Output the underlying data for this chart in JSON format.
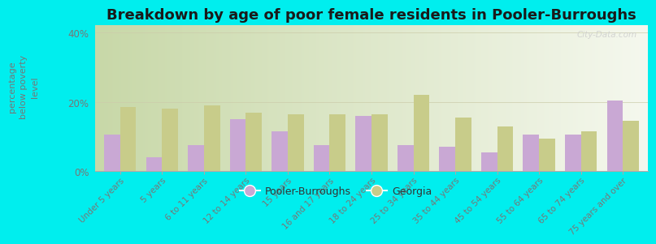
{
  "title": "Breakdown by age of poor female residents in Pooler-Burroughs",
  "categories": [
    "Under 5 years",
    "5 years",
    "6 to 11 years",
    "12 to 14 years",
    "15 years",
    "16 and 17 years",
    "18 to 24 years",
    "25 to 34 years",
    "35 to 44 years",
    "45 to 54 years",
    "55 to 64 years",
    "65 to 74 years",
    "75 years and over"
  ],
  "pooler_values": [
    10.5,
    4.0,
    7.5,
    15.0,
    11.5,
    7.5,
    16.0,
    7.5,
    7.0,
    5.5,
    10.5,
    10.5,
    20.5
  ],
  "georgia_values": [
    18.5,
    18.0,
    19.0,
    17.0,
    16.5,
    16.5,
    16.5,
    22.0,
    15.5,
    13.0,
    9.5,
    11.5,
    14.5
  ],
  "pooler_color": "#c9a8d4",
  "georgia_color": "#c8cc8a",
  "ylabel": "percentage\nbelow poverty\nlevel",
  "ylim": [
    0,
    42
  ],
  "yticks": [
    0,
    20,
    40
  ],
  "ytick_labels": [
    "0%",
    "20%",
    "40%"
  ],
  "background_color": "#00eeee",
  "title_fontsize": 13,
  "legend_pooler": "Pooler-Burroughs",
  "legend_georgia": "Georgia",
  "watermark": "City-Data.com"
}
